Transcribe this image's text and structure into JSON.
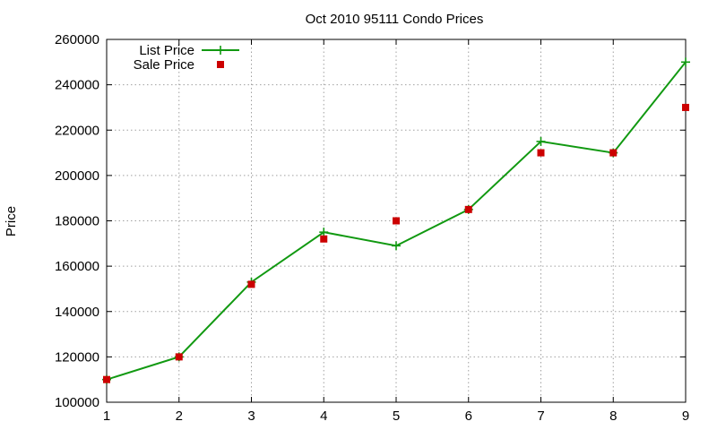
{
  "chart_data": {
    "type": "line",
    "title": "Oct 2010 95111 Condo Prices",
    "xlabel": "",
    "ylabel": "Price",
    "x": [
      1,
      2,
      3,
      4,
      5,
      6,
      7,
      8,
      9
    ],
    "xlim": [
      1,
      9
    ],
    "ylim": [
      100000,
      260000
    ],
    "x_ticks": [
      "1",
      "2",
      "3",
      "4",
      "5",
      "6",
      "7",
      "8",
      "9"
    ],
    "y_ticks": [
      "100000",
      "120000",
      "140000",
      "160000",
      "180000",
      "200000",
      "220000",
      "240000",
      "260000"
    ],
    "grid": true,
    "legend_position": "top-left",
    "series": [
      {
        "name": "List Price",
        "style": "line-with-plus-markers",
        "color": "#119911",
        "values": [
          110000,
          120000,
          153000,
          175000,
          169000,
          185000,
          215000,
          210000,
          250000
        ]
      },
      {
        "name": "Sale Price",
        "style": "square-markers",
        "color": "#cc0000",
        "values": [
          110000,
          120000,
          152000,
          172000,
          180000,
          185000,
          210000,
          210000,
          230000
        ]
      }
    ]
  }
}
